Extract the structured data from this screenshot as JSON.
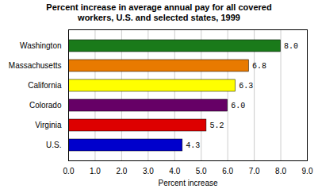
{
  "chart_data": {
    "type": "bar",
    "orientation": "horizontal",
    "title": "Percent increase in average annual pay for all covered\nworkers, U.S. and selected states, 1999",
    "categories": [
      "Washington",
      "Massachusetts",
      "California",
      "Colorado",
      "Virginia",
      "U.S."
    ],
    "values": [
      8.0,
      6.8,
      6.3,
      6.0,
      5.2,
      4.3
    ],
    "value_labels": [
      "8.0",
      "6.8",
      "6.3",
      "6.0",
      "5.2",
      "4.3"
    ],
    "colors": [
      "#1a7a1a",
      "#e87a00",
      "#ffff00",
      "#660066",
      "#dd0000",
      "#0000cc"
    ],
    "xlabel": "Percent increase",
    "xlim": [
      0.0,
      9.0
    ],
    "xticks": [
      {
        "value": 0,
        "label": "0.0"
      },
      {
        "value": 1,
        "label": "1.0"
      },
      {
        "value": 2,
        "label": "2.0"
      },
      {
        "value": 3,
        "label": "3.0"
      },
      {
        "value": 4,
        "label": "4.0"
      },
      {
        "value": 5,
        "label": "5.0"
      },
      {
        "value": 6,
        "label": "6.0"
      },
      {
        "value": 7,
        "label": "7.0"
      },
      {
        "value": 8,
        "label": "8.0"
      },
      {
        "value": 9,
        "label": "9.0"
      }
    ],
    "grid": true,
    "data_labels": true
  }
}
